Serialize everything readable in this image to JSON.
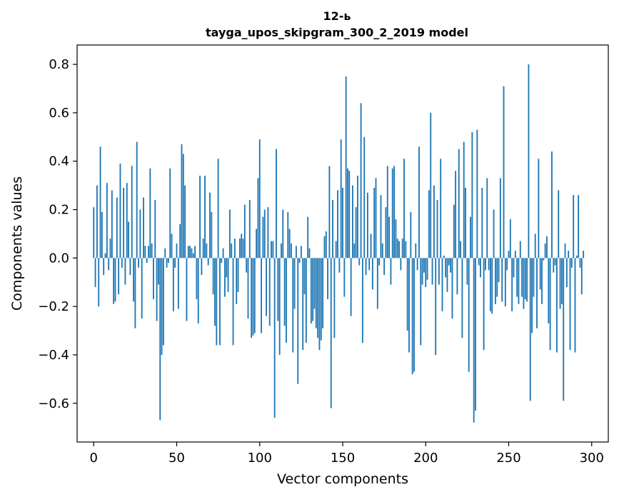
{
  "chart_data": {
    "type": "bar",
    "title": "12-ь",
    "subtitle": "tayga_upos_skipgram_300_2_2019 model",
    "xlabel": "Vector components",
    "ylabel": "Components values",
    "xlim": [
      -10,
      310
    ],
    "ylim": [
      -0.76,
      0.88
    ],
    "xticks": [
      0,
      50,
      100,
      150,
      200,
      250,
      300
    ],
    "xtick_labels": [
      "0",
      "50",
      "100",
      "150",
      "200",
      "250",
      "300"
    ],
    "yticks": [
      -0.6,
      -0.4,
      -0.2,
      0.0,
      0.2,
      0.4,
      0.6,
      0.8
    ],
    "ytick_labels": [
      "−0.6",
      "−0.4",
      "−0.2",
      "0.0",
      "0.2",
      "0.4",
      "0.6",
      "0.8"
    ],
    "grid": false,
    "bar_color": "#1f77b4",
    "categories_count": 300,
    "values": [
      0.21,
      -0.12,
      0.3,
      -0.2,
      0.46,
      0.19,
      -0.07,
      0.02,
      0.31,
      -0.05,
      0.08,
      0.28,
      -0.19,
      -0.18,
      0.25,
      -0.15,
      0.39,
      -0.04,
      0.29,
      -0.11,
      0.31,
      0.15,
      -0.07,
      0.38,
      -0.18,
      -0.29,
      0.48,
      -0.04,
      0.2,
      -0.25,
      0.25,
      0.05,
      -0.02,
      0.05,
      0.37,
      0.06,
      -0.17,
      0.24,
      -0.26,
      -0.11,
      -0.67,
      -0.4,
      -0.36,
      0.04,
      -0.04,
      -0.02,
      0.37,
      0.1,
      -0.22,
      -0.04,
      0.06,
      -0.21,
      0.14,
      0.47,
      0.43,
      0.3,
      -0.26,
      0.05,
      0.05,
      0.04,
      0.02,
      0.05,
      -0.17,
      -0.27,
      0.34,
      -0.07,
      0.08,
      0.34,
      0.06,
      -0.03,
      0.27,
      0.19,
      -0.15,
      -0.28,
      -0.36,
      0.41,
      -0.36,
      -0.02,
      0.04,
      -0.16,
      -0.08,
      -0.14,
      0.2,
      0.06,
      -0.36,
      0.08,
      -0.19,
      -0.14,
      0.08,
      0.1,
      0.08,
      0.22,
      -0.06,
      -0.25,
      0.24,
      -0.33,
      -0.32,
      -0.31,
      0.12,
      0.33,
      0.49,
      -0.31,
      0.17,
      0.2,
      -0.24,
      0.21,
      -0.28,
      0.07,
      0.07,
      -0.66,
      0.45,
      -0.26,
      -0.4,
      0.06,
      0.2,
      -0.28,
      -0.35,
      0.19,
      0.12,
      0.06,
      -0.39,
      -0.21,
      0.05,
      -0.52,
      -0.02,
      0.05,
      -0.38,
      -0.15,
      -0.35,
      0.17,
      0.04,
      -0.27,
      -0.26,
      -0.21,
      -0.29,
      -0.33,
      -0.38,
      -0.34,
      -0.29,
      0.09,
      0.11,
      -0.17,
      0.38,
      -0.62,
      0.24,
      -0.33,
      0.07,
      0.28,
      -0.06,
      0.49,
      0.29,
      -0.16,
      0.75,
      0.37,
      0.36,
      -0.24,
      0.3,
      0.06,
      0.21,
      0.34,
      -0.03,
      0.64,
      -0.35,
      0.5,
      -0.07,
      0.27,
      -0.05,
      0.1,
      -0.13,
      0.29,
      0.33,
      -0.21,
      -0.03,
      0.26,
      0.06,
      -0.07,
      0.21,
      0.38,
      0.17,
      -0.11,
      0.37,
      0.38,
      0.16,
      0.08,
      0.07,
      -0.05,
      0.08,
      0.41,
      0.07,
      -0.3,
      -0.39,
      0.19,
      -0.48,
      -0.47,
      0.06,
      -0.05,
      0.46,
      -0.36,
      -0.11,
      -0.06,
      -0.12,
      -0.09,
      0.28,
      0.6,
      -0.11,
      0.3,
      -0.4,
      0.24,
      -0.11,
      0.41,
      -0.22,
      0.01,
      -0.08,
      -0.14,
      -0.03,
      -0.06,
      -0.25,
      0.22,
      0.36,
      -0.15,
      0.45,
      0.07,
      -0.33,
      0.48,
      0.29,
      -0.11,
      -0.47,
      0.17,
      0.52,
      -0.68,
      -0.63,
      0.53,
      -0.03,
      -0.08,
      0.29,
      -0.38,
      -0.05,
      0.33,
      -0.05,
      -0.22,
      -0.23,
      0.2,
      -0.19,
      -0.16,
      -0.1,
      0.33,
      -0.18,
      0.71,
      -0.2,
      -0.05,
      0.03,
      0.16,
      -0.22,
      -0.08,
      0.03,
      -0.16,
      -0.19,
      0.07,
      -0.16,
      -0.21,
      -0.17,
      -0.18,
      0.8,
      -0.59,
      -0.31,
      -0.16,
      0.1,
      -0.29,
      0.41,
      -0.13,
      -0.19,
      -0.01,
      0.06,
      0.09,
      -0.27,
      -0.38,
      0.44,
      -0.06,
      -0.03,
      -0.39,
      0.28,
      -0.21,
      -0.19,
      -0.59,
      0.06,
      -0.12,
      0.03,
      -0.38,
      -0.04,
      0.26,
      -0.39,
      0.01,
      0.26,
      -0.04,
      -0.15,
      0.03
    ]
  }
}
